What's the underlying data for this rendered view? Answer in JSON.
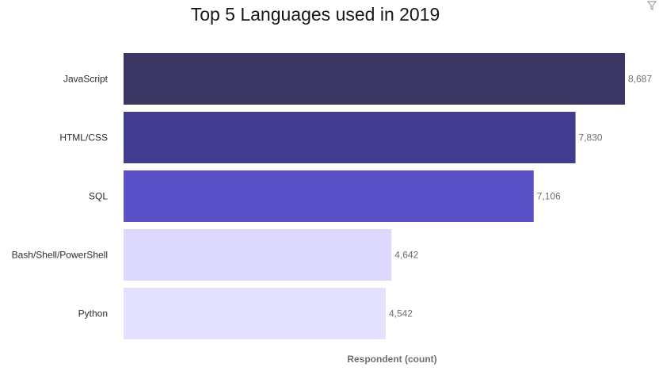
{
  "chart_data": {
    "type": "bar",
    "orientation": "horizontal",
    "title": "Top 5 Languages used in 2019",
    "xlabel": "Respondent (count)",
    "ylabel": "",
    "categories": [
      "JavaScript",
      "HTML/CSS",
      "SQL",
      "Bash/Shell/PowerShell",
      "Python"
    ],
    "values": [
      8687,
      7830,
      7106,
      4642,
      4542
    ],
    "value_labels": [
      "8,687",
      "7,830",
      "7,106",
      "4,642",
      "4,542"
    ],
    "colors": [
      "#3b3561",
      "#413c8f",
      "#5a51c7",
      "#dcd9fc",
      "#e3e1ff"
    ],
    "xlim": [
      0,
      8687
    ],
    "grid": false,
    "legend": "none"
  },
  "icons": {
    "top_right": "filter-icon"
  }
}
